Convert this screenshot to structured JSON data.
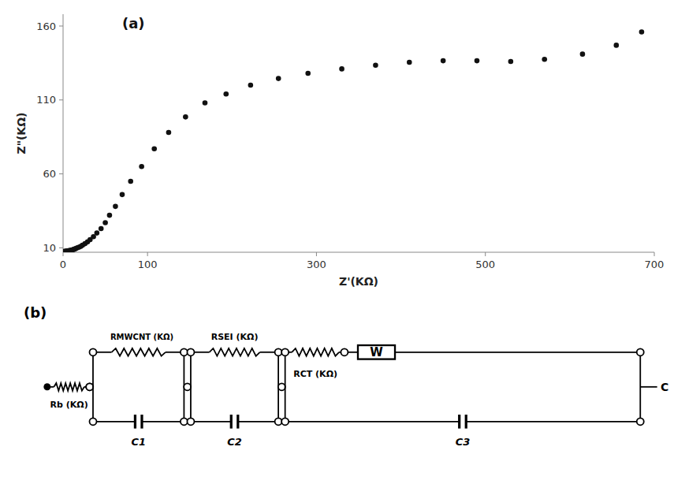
{
  "chart_data": {
    "type": "scatter",
    "title": "(a)",
    "x_label": "Z'(KΩ)",
    "y_label": "Z\"(KΩ)",
    "x": [
      1,
      2,
      3,
      4,
      5,
      6,
      7,
      8,
      9,
      10,
      11,
      12,
      13,
      14,
      15,
      17,
      19,
      21,
      23,
      26,
      29,
      32,
      36,
      40,
      45,
      50,
      55,
      62,
      70,
      80,
      93,
      108,
      125,
      145,
      168,
      193,
      222,
      255,
      290,
      330,
      370,
      410,
      450,
      490,
      530,
      570,
      615,
      655,
      685
    ],
    "values": [
      7.5,
      7.6,
      7.7,
      7.8,
      7.9,
      8.0,
      8.1,
      8.2,
      8.3,
      8.4,
      8.6,
      8.8,
      9.0,
      9.2,
      9.5,
      10.0,
      10.5,
      11.0,
      11.8,
      12.8,
      14.0,
      15.5,
      17.5,
      20.0,
      23.0,
      27.0,
      32.0,
      38.0,
      46.0,
      55.0,
      65.0,
      77.0,
      88.0,
      98.5,
      108.0,
      114.0,
      120.0,
      124.5,
      128.0,
      131.0,
      133.5,
      135.5,
      136.5,
      136.5,
      136.0,
      137.5,
      141.0,
      147.0,
      156.0
    ],
    "color": "#111111",
    "xlim": [
      0,
      700
    ],
    "ylim": [
      7,
      168
    ],
    "xticks": [
      0,
      100,
      300,
      500,
      700
    ],
    "yticks": [
      10,
      60,
      110,
      160
    ],
    "grid": false,
    "annotations": [
      "(b)",
      "Rb (KΩ)",
      "RMWCNT (KΩ)",
      "C1",
      "RSEI (KΩ)",
      "C2",
      "W",
      "RCT (KΩ)",
      "C3",
      "C"
    ]
  }
}
